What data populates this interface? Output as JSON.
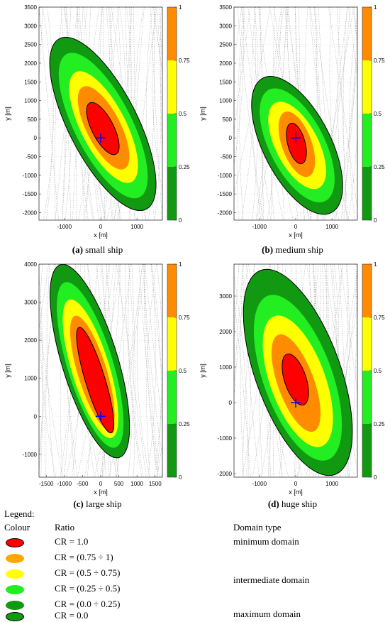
{
  "chart_data": [
    {
      "type": "heatmap",
      "panel_label": "(a)",
      "panel_caption": "small ship",
      "xlabel": "x [m]",
      "ylabel": "y [m]",
      "xlim": [
        -1700,
        1700
      ],
      "ylim": [
        -2200,
        3500
      ],
      "xticks": [
        -1000,
        0,
        1000
      ],
      "yticks": [
        -2000,
        -1500,
        -1000,
        -500,
        0,
        500,
        1000,
        1500,
        2000,
        2500,
        3000,
        3500
      ],
      "colorbar_ticks": [
        "0",
        "0.25",
        "0.5",
        "0.75",
        "1"
      ],
      "ellipses": [
        {
          "ratio": 0.0,
          "cx": 60,
          "cy": 375,
          "rx": 950,
          "ry": 2560,
          "angle": -27
        },
        {
          "ratio": 0.25,
          "cx": 70,
          "cy": 330,
          "rx": 790,
          "ry": 2150,
          "angle": -27
        },
        {
          "ratio": 0.5,
          "cx": 80,
          "cy": 290,
          "rx": 620,
          "ry": 1650,
          "angle": -27
        },
        {
          "ratio": 0.75,
          "cx": 80,
          "cy": 270,
          "rx": 470,
          "ry": 1230,
          "angle": -27
        },
        {
          "ratio": 1.0,
          "cx": 60,
          "cy": 250,
          "rx": 300,
          "ry": 770,
          "angle": -27
        }
      ],
      "ship_position": [
        0,
        0
      ]
    },
    {
      "type": "heatmap",
      "panel_label": "(b)",
      "panel_caption": "medium ship",
      "xlabel": "x [m]",
      "ylabel": "y [m]",
      "xlim": [
        -1700,
        1700
      ],
      "ylim": [
        -2200,
        3500
      ],
      "xticks": [
        -1000,
        0,
        1000
      ],
      "yticks": [
        -2000,
        -1500,
        -1000,
        -500,
        0,
        500,
        1000,
        1500,
        2000,
        2500,
        3000,
        3500
      ],
      "colorbar_ticks": [
        "0",
        "0.25",
        "0.5",
        "0.75",
        "1"
      ],
      "ellipses": [
        {
          "ratio": 0.0,
          "cx": 40,
          "cy": -200,
          "rx": 930,
          "ry": 2020,
          "angle": -27
        },
        {
          "ratio": 0.25,
          "cx": 40,
          "cy": -200,
          "rx": 760,
          "ry": 1670,
          "angle": -27
        },
        {
          "ratio": 0.5,
          "cx": 40,
          "cy": -200,
          "rx": 590,
          "ry": 1280,
          "angle": -27
        },
        {
          "ratio": 0.75,
          "cx": 30,
          "cy": -170,
          "rx": 410,
          "ry": 920,
          "angle": -20
        },
        {
          "ratio": 1.0,
          "cx": 20,
          "cy": -150,
          "rx": 240,
          "ry": 560,
          "angle": -15
        }
      ],
      "ship_position": [
        0,
        0
      ]
    },
    {
      "type": "heatmap",
      "panel_label": "(c)",
      "panel_caption": "large ship",
      "xlabel": "x [m]",
      "ylabel": "y [m]",
      "xlim": [
        -1700,
        1700
      ],
      "ylim": [
        -1600,
        4000
      ],
      "xticks": [
        -1500,
        -1000,
        -500,
        0,
        500,
        1000,
        1500
      ],
      "yticks": [
        -1000,
        0,
        1000,
        2000,
        3000,
        4000
      ],
      "colorbar_ticks": [
        "0",
        "0.25",
        "0.5",
        "0.75",
        "1"
      ],
      "ellipses": [
        {
          "ratio": 0.0,
          "cx": -300,
          "cy": 1450,
          "rx": 770,
          "ry": 2650,
          "angle": -17
        },
        {
          "ratio": 0.25,
          "cx": -290,
          "cy": 1350,
          "rx": 630,
          "ry": 2270,
          "angle": -17
        },
        {
          "ratio": 0.5,
          "cx": -280,
          "cy": 1250,
          "rx": 520,
          "ry": 1900,
          "angle": -17
        },
        {
          "ratio": 0.75,
          "cx": -230,
          "cy": 1150,
          "rx": 400,
          "ry": 1560,
          "angle": -17
        },
        {
          "ratio": 1.0,
          "cx": -150,
          "cy": 950,
          "rx": 270,
          "ry": 1450,
          "angle": -17
        }
      ],
      "ship_position": [
        0,
        0
      ]
    },
    {
      "type": "heatmap",
      "panel_label": "(d)",
      "panel_caption": "huge ship",
      "xlabel": "x [m]",
      "ylabel": "y [m]",
      "xlim": [
        -1700,
        1700
      ],
      "ylim": [
        -2100,
        3900
      ],
      "xticks": [
        -1000,
        0,
        1000
      ],
      "yticks": [
        -2000,
        -1000,
        0,
        1000,
        2000,
        3000
      ],
      "colorbar_ticks": [
        "0",
        "0.25",
        "0.5",
        "0.75",
        "1"
      ],
      "ellipses": [
        {
          "ratio": 0.0,
          "cx": 60,
          "cy": 850,
          "rx": 1170,
          "ry": 3060,
          "angle": -20
        },
        {
          "ratio": 0.25,
          "cx": 60,
          "cy": 700,
          "rx": 950,
          "ry": 2460,
          "angle": -20
        },
        {
          "ratio": 0.5,
          "cx": 60,
          "cy": 600,
          "rx": 760,
          "ry": 1950,
          "angle": -20
        },
        {
          "ratio": 0.75,
          "cx": 10,
          "cy": 550,
          "rx": 500,
          "ry": 1450,
          "angle": -20
        },
        {
          "ratio": 1.0,
          "cx": -10,
          "cy": 650,
          "rx": 300,
          "ry": 750,
          "angle": -18
        }
      ],
      "ship_position": [
        0,
        0
      ]
    }
  ],
  "legend": {
    "title": "Legend:",
    "col_colour": "Colour",
    "col_ratio": "Ratio",
    "col_domain": "Domain type",
    "rows": [
      {
        "ratio": "CR = 1.0",
        "color": "#ff0000",
        "outlined": true
      },
      {
        "ratio": "CR = (0.75 ÷ 1)",
        "color": "#ffa500",
        "outlined": false
      },
      {
        "ratio": "CR = (0.5 ÷ 0.75)",
        "color": "#ffff00",
        "outlined": false
      },
      {
        "ratio": "CR = (0.25 ÷ 0.5)",
        "color": "#22ee22",
        "outlined": false
      },
      {
        "ratio": "CR = (0.0 ÷ 0.25)",
        "color": "#119911",
        "outlined": false
      },
      {
        "ratio": "CR = 0.0",
        "color": "#119911",
        "outlined": true
      }
    ],
    "domains": [
      "minimum domain",
      "intermediate domain",
      "maximum domain"
    ]
  },
  "colors": {
    "cr_1": "#ff0000",
    "cr_075": "#ff8c00",
    "cr_05": "#ffff00",
    "cr_025": "#22ee22",
    "cr_0": "#119911",
    "ship_marker": "#0000ff"
  }
}
